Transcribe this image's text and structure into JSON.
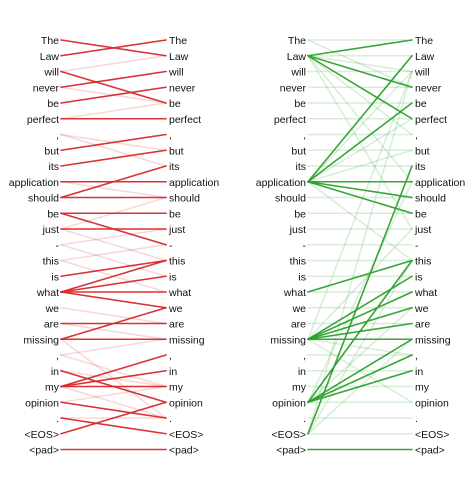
{
  "tokens": [
    "The",
    "Law",
    "will",
    "never",
    "be",
    "perfect",
    ",",
    "but",
    "its",
    "application",
    "should",
    "be",
    "just",
    "-",
    "this",
    "is",
    "what",
    "we",
    "are",
    "missing",
    ",",
    "in",
    "my",
    "opinion",
    ".",
    "<EOS>",
    "<pad>"
  ],
  "panels": [
    {
      "name": "red-panel",
      "color": "#d62728",
      "strong_links": [
        [
          0,
          1
        ],
        [
          1,
          0
        ],
        [
          3,
          2
        ],
        [
          4,
          3
        ],
        [
          5,
          5
        ],
        [
          2,
          4
        ],
        [
          7,
          6
        ],
        [
          8,
          7
        ],
        [
          9,
          9
        ],
        [
          10,
          8
        ],
        [
          10,
          10
        ],
        [
          12,
          12
        ],
        [
          11,
          13
        ],
        [
          11,
          11
        ],
        [
          15,
          14
        ],
        [
          16,
          16
        ],
        [
          16,
          15
        ],
        [
          16,
          17
        ],
        [
          16,
          14
        ],
        [
          18,
          18
        ],
        [
          19,
          19
        ],
        [
          19,
          17
        ],
        [
          22,
          20
        ],
        [
          22,
          22
        ],
        [
          22,
          21
        ],
        [
          21,
          23
        ],
        [
          23,
          24
        ],
        [
          24,
          25
        ],
        [
          25,
          23
        ],
        [
          26,
          26
        ]
      ],
      "faint_links": [
        [
          2,
          1
        ],
        [
          3,
          4
        ],
        [
          5,
          4
        ],
        [
          6,
          7
        ],
        [
          9,
          10
        ],
        [
          12,
          10
        ],
        [
          13,
          12
        ],
        [
          13,
          15
        ],
        [
          14,
          16
        ],
        [
          17,
          18
        ],
        [
          18,
          19
        ],
        [
          20,
          22
        ],
        [
          21,
          22
        ],
        [
          22,
          24
        ],
        [
          23,
          22
        ],
        [
          24,
          24
        ],
        [
          6,
          8
        ],
        [
          12,
          14
        ],
        [
          20,
          19
        ],
        [
          19,
          24
        ],
        [
          14,
          13
        ]
      ]
    },
    {
      "name": "green-panel",
      "color": "#2ca02c",
      "strong_links": [
        [
          1,
          0
        ],
        [
          1,
          3
        ],
        [
          1,
          5
        ],
        [
          9,
          1
        ],
        [
          9,
          4
        ],
        [
          9,
          9
        ],
        [
          9,
          10
        ],
        [
          9,
          11
        ],
        [
          16,
          14
        ],
        [
          19,
          15
        ],
        [
          19,
          16
        ],
        [
          19,
          17
        ],
        [
          19,
          18
        ],
        [
          19,
          19
        ],
        [
          23,
          14
        ],
        [
          23,
          19
        ],
        [
          23,
          20
        ],
        [
          23,
          21
        ],
        [
          25,
          8
        ],
        [
          26,
          26
        ]
      ],
      "faint_links": [
        [
          0,
          0
        ],
        [
          0,
          3
        ],
        [
          1,
          1
        ],
        [
          1,
          2
        ],
        [
          1,
          6
        ],
        [
          1,
          9
        ],
        [
          2,
          2
        ],
        [
          3,
          3
        ],
        [
          4,
          4
        ],
        [
          5,
          5
        ],
        [
          6,
          6
        ],
        [
          7,
          7
        ],
        [
          8,
          8
        ],
        [
          9,
          2
        ],
        [
          9,
          5
        ],
        [
          9,
          7
        ],
        [
          10,
          10
        ],
        [
          11,
          11
        ],
        [
          12,
          12
        ],
        [
          13,
          13
        ],
        [
          14,
          14
        ],
        [
          15,
          15
        ],
        [
          16,
          16
        ],
        [
          17,
          17
        ],
        [
          18,
          18
        ],
        [
          19,
          12
        ],
        [
          19,
          20
        ],
        [
          19,
          23
        ],
        [
          20,
          20
        ],
        [
          21,
          21
        ],
        [
          22,
          22
        ],
        [
          23,
          23
        ],
        [
          23,
          17
        ],
        [
          24,
          24
        ],
        [
          25,
          25
        ],
        [
          25,
          2
        ],
        [
          25,
          14
        ],
        [
          25,
          19
        ],
        [
          1,
          12
        ],
        [
          9,
          14
        ],
        [
          19,
          2
        ],
        [
          23,
          9
        ]
      ]
    }
  ]
}
